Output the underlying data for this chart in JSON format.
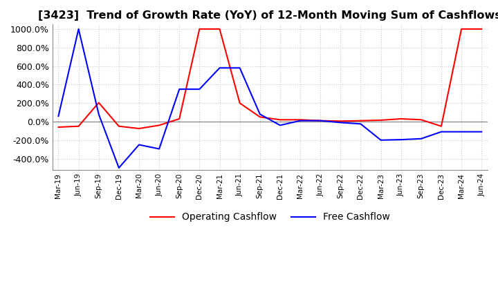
{
  "title": "[3423]  Trend of Growth Rate (YoY) of 12-Month Moving Sum of Cashflows",
  "title_fontsize": 11.5,
  "ylim": [
    -520,
    1050
  ],
  "yticks": [
    -400,
    -200,
    0,
    200,
    400,
    600,
    800,
    1000
  ],
  "ytick_labels": [
    "-400.0%",
    "-200.0%",
    "0.0%",
    "200.0%",
    "400.0%",
    "600.0%",
    "800.0%",
    "1000.0%"
  ],
  "background_color": "#ffffff",
  "grid_color": "#c8c8c8",
  "grid_style": "dotted",
  "operating_color": "#ff0000",
  "free_color": "#0000ff",
  "legend_labels": [
    "Operating Cashflow",
    "Free Cashflow"
  ],
  "xtick_labels": [
    "Mar-19",
    "Jun-19",
    "Sep-19",
    "Dec-19",
    "Mar-20",
    "Jun-20",
    "Sep-20",
    "Dec-20",
    "Mar-21",
    "Jun-21",
    "Sep-21",
    "Dec-21",
    "Mar-22",
    "Jun-22",
    "Sep-22",
    "Dec-22",
    "Mar-23",
    "Jun-23",
    "Sep-23",
    "Dec-23",
    "Mar-24",
    "Jun-24"
  ],
  "operating_cashflow": [
    -60,
    -50,
    205,
    -50,
    -75,
    -40,
    30,
    1000,
    1000,
    200,
    50,
    20,
    20,
    10,
    5,
    10,
    15,
    30,
    20,
    -50,
    1000,
    1000
  ],
  "free_cashflow": [
    60,
    1000,
    80,
    -500,
    -250,
    -295,
    350,
    350,
    580,
    580,
    80,
    -40,
    10,
    10,
    -10,
    -25,
    -200,
    -195,
    -185,
    -110,
    -110,
    -110
  ]
}
